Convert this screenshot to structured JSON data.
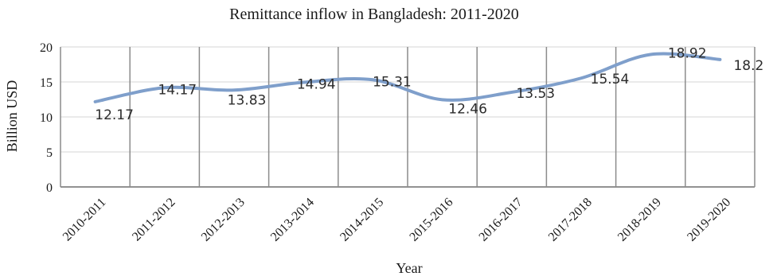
{
  "chart_data": {
    "type": "line",
    "title": "Remittance inflow in Bangladesh: 2011-2020",
    "xlabel": "Year",
    "ylabel": "Billion USD",
    "categories": [
      "2010-2011",
      "2011-2012",
      "2012-2013",
      "2013-2014",
      "2014-2015",
      "2015-2016",
      "2016-2017",
      "2017-2018",
      "2018-2019",
      "2019-2020"
    ],
    "series": [
      {
        "values": [
          12.17,
          14.17,
          13.83,
          14.94,
          15.31,
          12.46,
          13.53,
          15.54,
          18.92,
          18.2
        ]
      }
    ],
    "data_labels": [
      "12.17",
      "14.17",
      "13.83",
      "14.94",
      "15.31",
      "12.46",
      "13.53",
      "15.54",
      "18.92",
      "18.2"
    ],
    "ylim": [
      0,
      20
    ],
    "yticks": [
      "0",
      "5",
      "10",
      "15",
      "20"
    ],
    "grid": "vertical and horizontal",
    "line_color": "#7f9fcb",
    "grid_color": "#8c8c8c"
  }
}
